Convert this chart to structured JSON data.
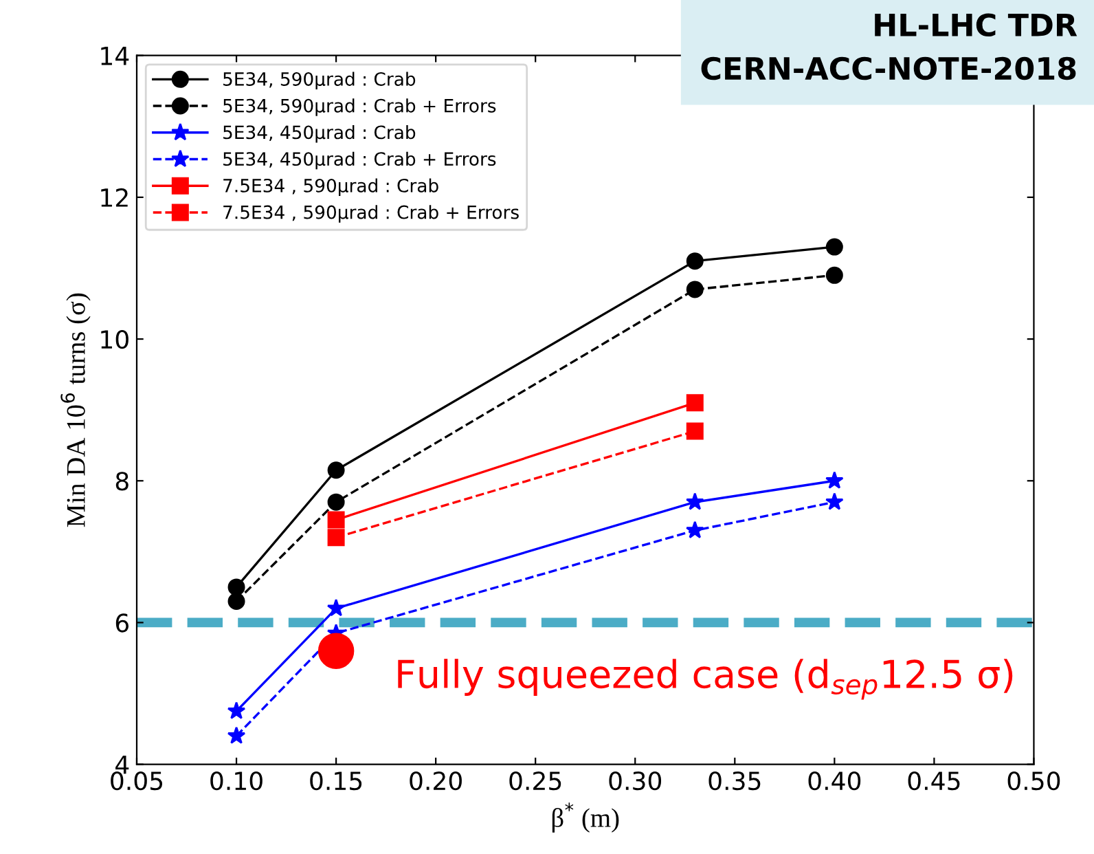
{
  "chart_data": {
    "type": "line",
    "xlabel": "β$^{*}$ (m)",
    "ylabel": "Min DA 10$^{6}$ turns (σ)",
    "xlim": [
      0.05,
      0.5
    ],
    "xticks": [
      {
        "value": 0.05,
        "label": "0.05"
      },
      {
        "value": 0.1,
        "label": "0.10"
      },
      {
        "value": 0.15,
        "label": "0.15"
      },
      {
        "value": 0.2,
        "label": "0.20"
      },
      {
        "value": 0.25,
        "label": "0.25"
      },
      {
        "value": 0.3,
        "label": "0.30"
      },
      {
        "value": 0.35,
        "label": "0.35"
      },
      {
        "value": 0.4,
        "label": "0.40"
      },
      {
        "value": 0.45,
        "label": "0.45"
      },
      {
        "value": 0.5,
        "label": "0.50"
      }
    ],
    "ylim": [
      4,
      14
    ],
    "yticks": [
      4,
      6,
      8,
      10,
      12,
      14
    ],
    "grid": false,
    "legend": "top left",
    "series": [
      {
        "name": "5E34, 590μrad : Crab",
        "color": "#000000",
        "marker": "circle",
        "line_style": "solid",
        "x": [
          0.1,
          0.15,
          0.33,
          0.4
        ],
        "values": [
          6.5,
          8.15,
          11.1,
          11.3
        ]
      },
      {
        "name": "5E34, 590μrad : Crab + Errors",
        "color": "#000000",
        "marker": "circle",
        "line_style": "dashed",
        "x": [
          0.1,
          0.15,
          0.33,
          0.4
        ],
        "values": [
          6.3,
          7.7,
          10.7,
          10.9
        ]
      },
      {
        "name": "5E34, 450μrad : Crab",
        "color": "#0000ff",
        "marker": "star",
        "line_style": "solid",
        "x": [
          0.1,
          0.15,
          0.33,
          0.4
        ],
        "values": [
          4.75,
          6.2,
          7.7,
          8.0
        ]
      },
      {
        "name": "5E34, 450μrad : Crab + Errors",
        "color": "#0000ff",
        "marker": "star",
        "line_style": "dashed",
        "x": [
          0.1,
          0.15,
          0.33,
          0.4
        ],
        "values": [
          4.4,
          5.85,
          7.3,
          7.7
        ]
      },
      {
        "name": "7.5E34 , 590μrad : Crab",
        "color": "#ff0000",
        "marker": "square",
        "line_style": "solid",
        "x": [
          0.15,
          0.33
        ],
        "values": [
          7.45,
          9.1
        ]
      },
      {
        "name": "7.5E34 , 590μrad : Crab + Errors",
        "color": "#ff0000",
        "marker": "square",
        "line_style": "dashed",
        "x": [
          0.15,
          0.33
        ],
        "values": [
          7.2,
          8.7
        ]
      },
      {
        "type": "scatter",
        "color": "#ff0000",
        "marker": "circle",
        "x": [
          0.15
        ],
        "values": [
          5.6
        ]
      }
    ],
    "ref_lines": [
      {
        "axis": "y",
        "value": 6,
        "color": "#4bacc6",
        "line_style": "dashed"
      }
    ],
    "annotations": [
      "HL-LHC TDR\nCERN-ACC-NOTE-2018",
      "Fully squeezed case (d$_{sep}$12.5 σ)"
    ]
  }
}
